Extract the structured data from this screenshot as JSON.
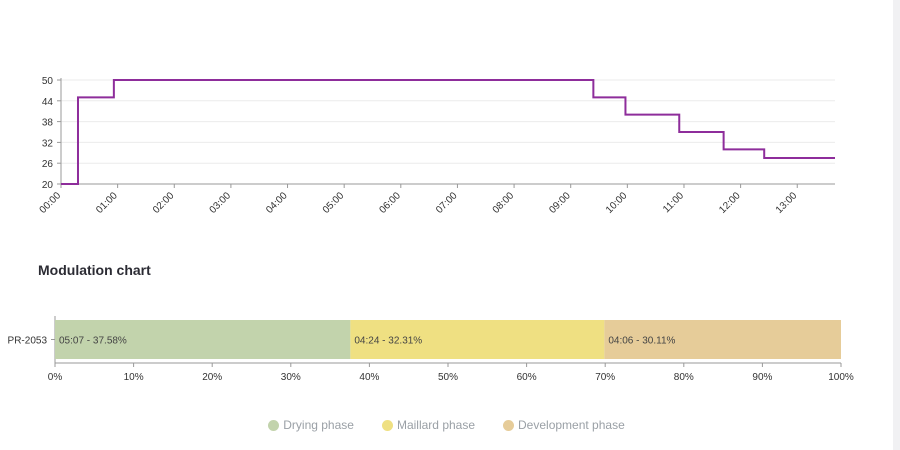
{
  "chart_data": [
    {
      "type": "line",
      "x_ticks": [
        "00:00",
        "01:00",
        "02:00",
        "03:00",
        "04:00",
        "05:00",
        "06:00",
        "07:00",
        "08:00",
        "09:00",
        "10:00",
        "11:00",
        "12:00",
        "13:00"
      ],
      "y_ticks": [
        20,
        26,
        32,
        38,
        44,
        50
      ],
      "ylim": [
        20,
        50
      ],
      "xlim_minutes": [
        0,
        820
      ],
      "grid": true,
      "series": [
        {
          "color": "#8e2d9b",
          "step": true,
          "points": [
            {
              "x": "00:00",
              "y": 20
            },
            {
              "x": "00:18",
              "y": 45
            },
            {
              "x": "00:56",
              "y": 50
            },
            {
              "x": "09:24",
              "y": 45
            },
            {
              "x": "09:58",
              "y": 40
            },
            {
              "x": "10:55",
              "y": 35
            },
            {
              "x": "11:42",
              "y": 30
            },
            {
              "x": "12:25",
              "y": 27.5
            },
            {
              "x": "13:40",
              "y": 27.5
            }
          ]
        }
      ]
    },
    {
      "type": "bar",
      "orientation": "horizontal",
      "stacked": true,
      "title": "Modulation chart",
      "categories": [
        "PR-2053"
      ],
      "x_ticks": [
        "0%",
        "10%",
        "20%",
        "30%",
        "40%",
        "50%",
        "60%",
        "70%",
        "80%",
        "90%",
        "100%"
      ],
      "xlim": [
        0,
        100
      ],
      "legend_position": "bottom",
      "series": [
        {
          "name": "Drying phase",
          "color": "#c2d3ac",
          "values": [
            37.58
          ],
          "label": "05:07 - 37.58%"
        },
        {
          "name": "Maillard phase",
          "color": "#efe082",
          "values": [
            32.31
          ],
          "label": "04:24 - 32.31%"
        },
        {
          "name": "Development phase",
          "color": "#e6cc99",
          "values": [
            30.11
          ],
          "label": "04:06 - 30.11%"
        }
      ]
    }
  ]
}
